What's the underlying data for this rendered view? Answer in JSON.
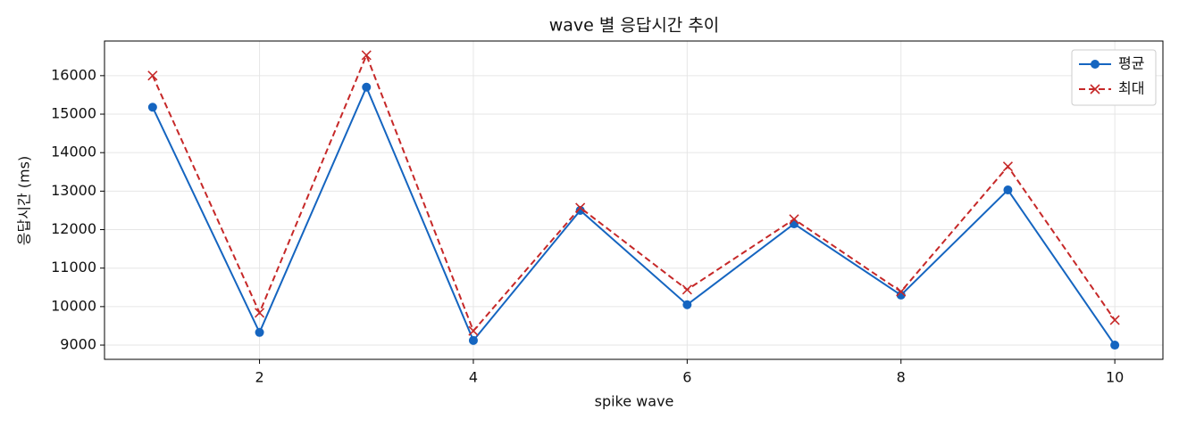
{
  "chart_data": {
    "type": "line",
    "title": "wave 별 응답시간 추이",
    "x_label": "spike wave",
    "y_label": "응답시간 (ms)",
    "x": [
      1,
      2,
      3,
      4,
      5,
      6,
      7,
      8,
      9,
      10
    ],
    "series": [
      {
        "name": "평균",
        "color": "#1565c0",
        "marker": "o",
        "linestyle": "-",
        "values": [
          15180,
          9330,
          15700,
          9120,
          12500,
          10050,
          12150,
          10300,
          13030,
          9000
        ]
      },
      {
        "name": "최대",
        "color": "#c62828",
        "marker": "x",
        "linestyle": "--",
        "values": [
          16000,
          9840,
          16530,
          9370,
          12570,
          10440,
          12270,
          10390,
          13640,
          9650
        ]
      }
    ],
    "xlim": [
      0.55,
      10.45
    ],
    "xticks": [
      2,
      4,
      6,
      8,
      10
    ],
    "ylim": [
      8630,
      16900
    ],
    "yticks": [
      9000,
      10000,
      11000,
      12000,
      13000,
      14000,
      15000,
      16000
    ],
    "grid": true,
    "legend": "upper right"
  }
}
